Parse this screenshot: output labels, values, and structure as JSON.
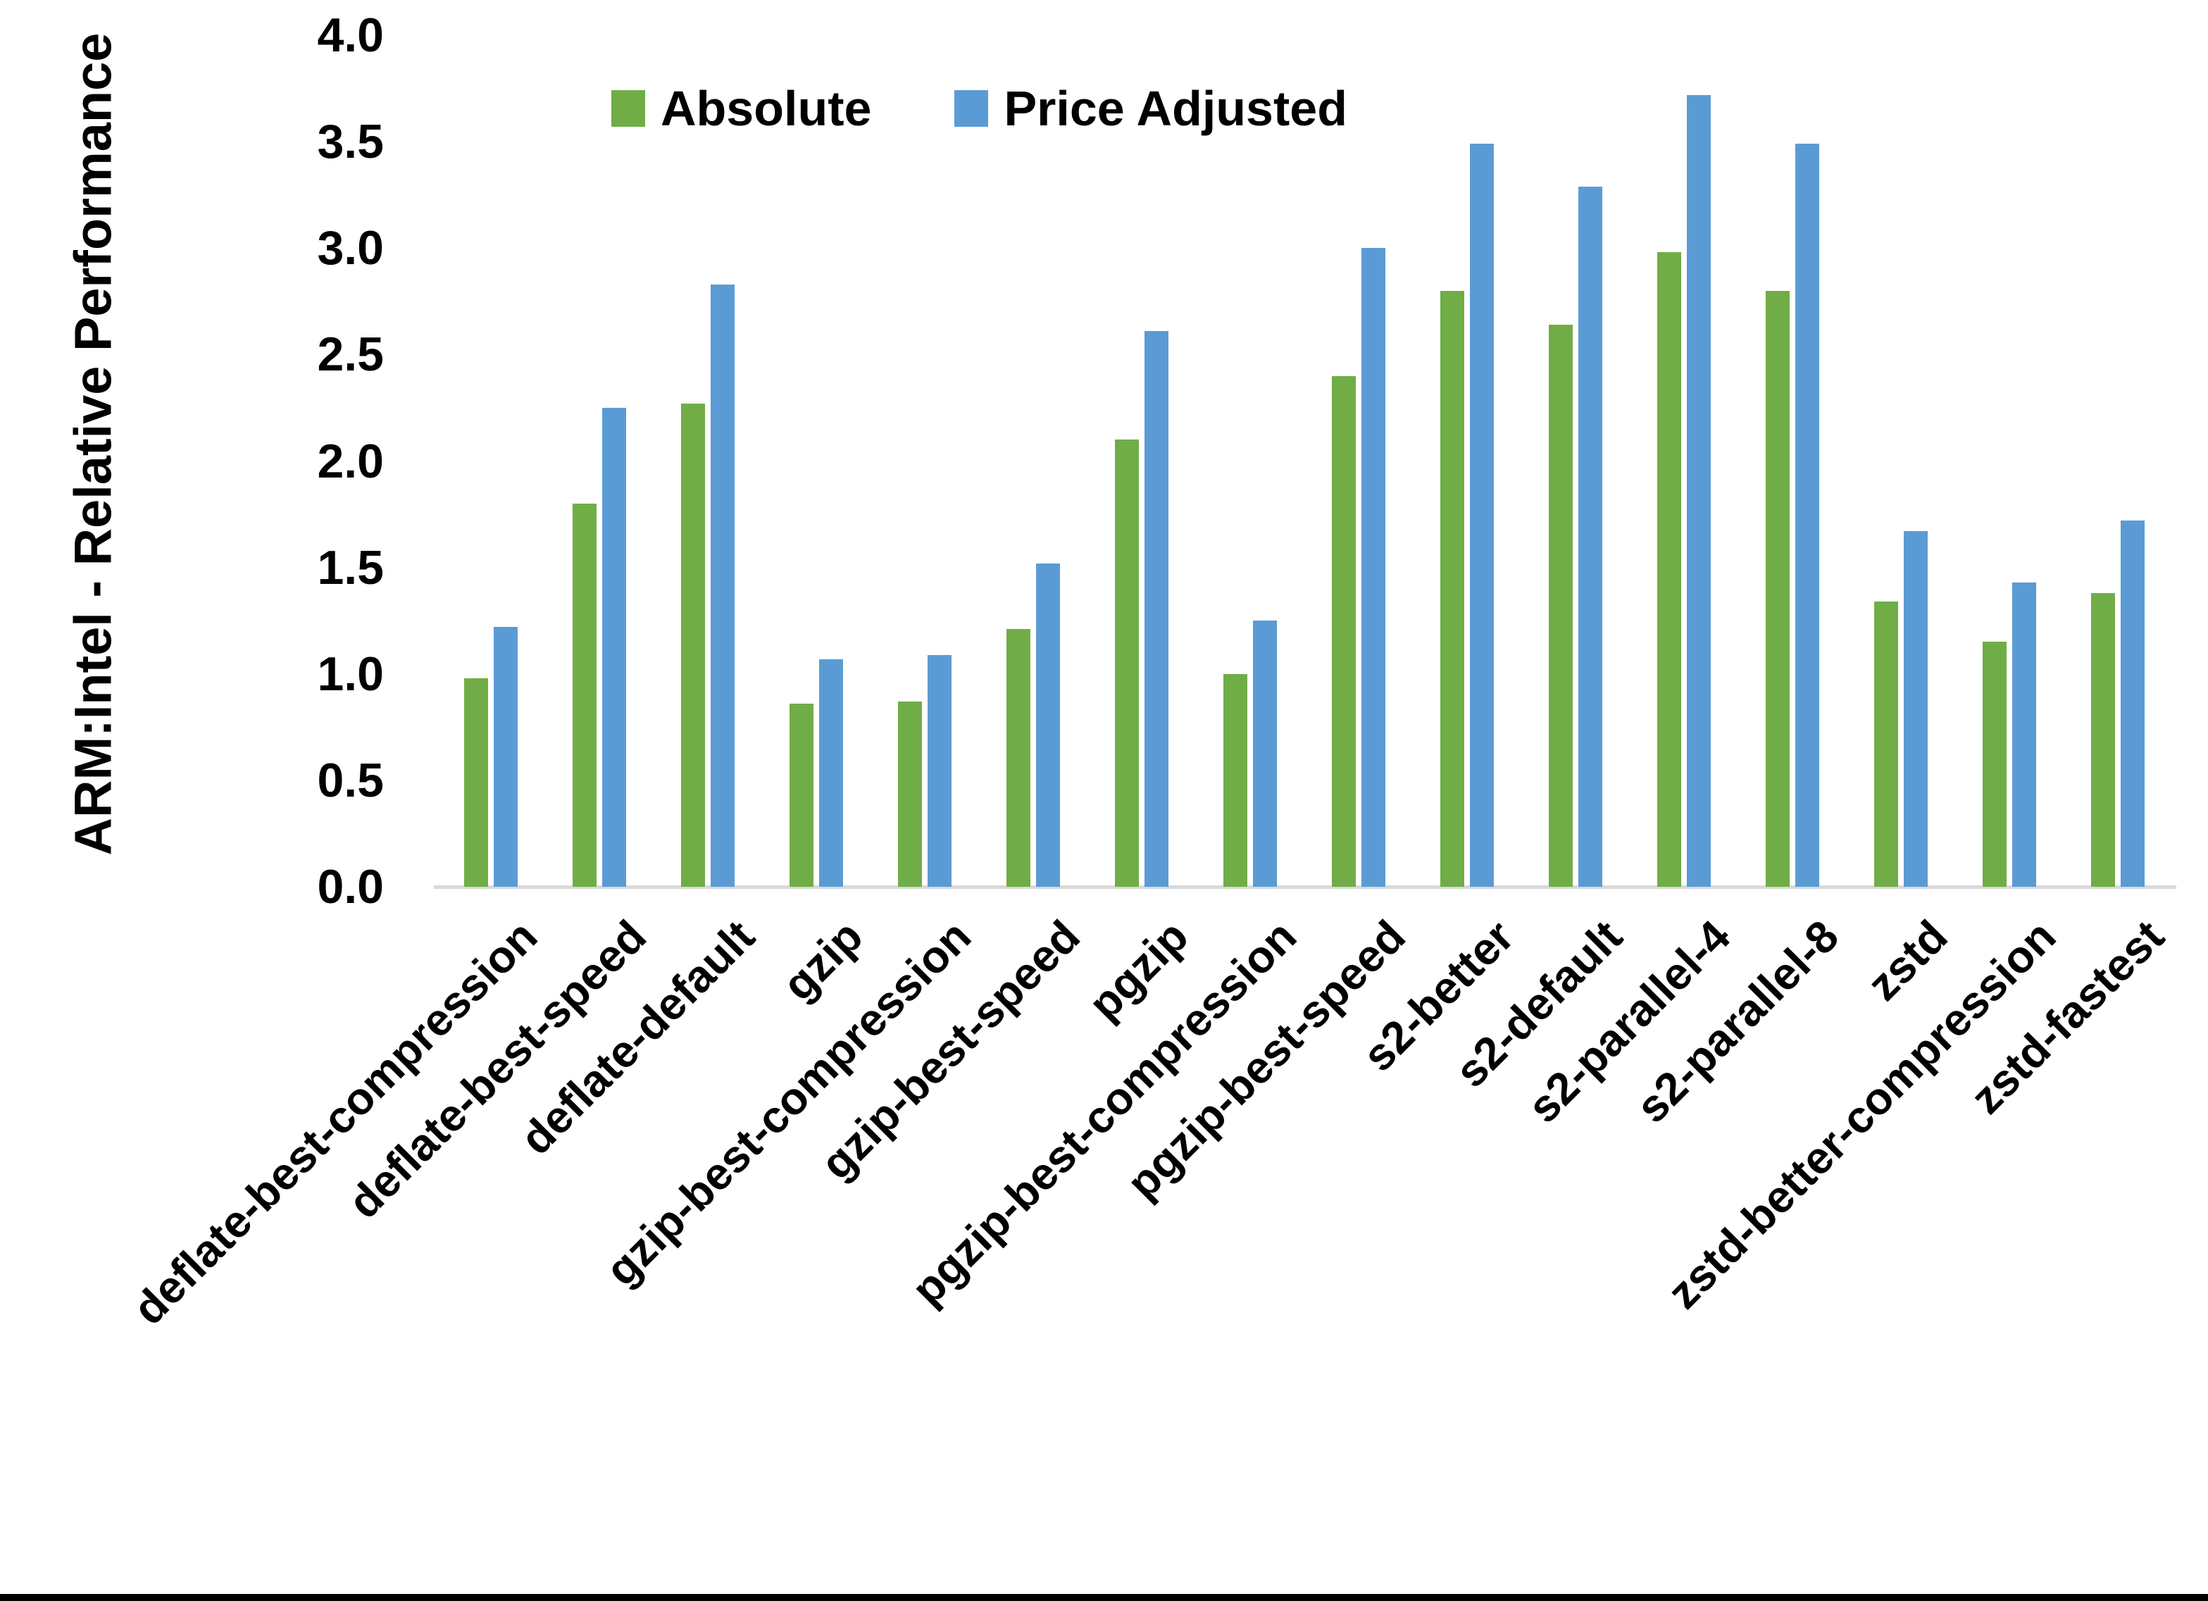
{
  "chart_data": {
    "type": "bar",
    "title": "",
    "xlabel": "",
    "ylabel": "ARM:Intel - Relative Performance",
    "ylim": [
      0,
      4.0
    ],
    "ytick_step": 0.5,
    "ytick_format_decimals": 1,
    "grid": false,
    "legend_position": "top-center",
    "x_label_rotation_deg": 45,
    "categories": [
      "deflate-best-compression",
      "deflate-best-speed",
      "deflate-default",
      "gzip",
      "gzip-best-compression",
      "gzip-best-speed",
      "pgzip",
      "pgzip-best-compression",
      "pgzip-best-speed",
      "s2-better",
      "s2-default",
      "s2-parallel-4",
      "s2-parallel-8",
      "zstd",
      "zstd-better-compression",
      "zstd-fastest"
    ],
    "series": [
      {
        "name": "Absolute",
        "color": "#70AD47",
        "values": [
          0.98,
          1.8,
          2.27,
          0.86,
          0.87,
          1.21,
          2.1,
          1.0,
          2.4,
          2.8,
          2.64,
          2.98,
          2.8,
          1.34,
          1.15,
          1.38
        ]
      },
      {
        "name": "Price Adjusted",
        "color": "#5B9BD5",
        "values": [
          1.22,
          2.25,
          2.83,
          1.07,
          1.09,
          1.52,
          2.61,
          1.25,
          3.0,
          3.49,
          3.29,
          3.72,
          3.49,
          1.67,
          1.43,
          1.72
        ]
      }
    ]
  },
  "colors": {
    "background": "#FFFFFF",
    "axis_line": "#D9D9D9",
    "text": "#000000",
    "bottom_bar": "#000000"
  }
}
